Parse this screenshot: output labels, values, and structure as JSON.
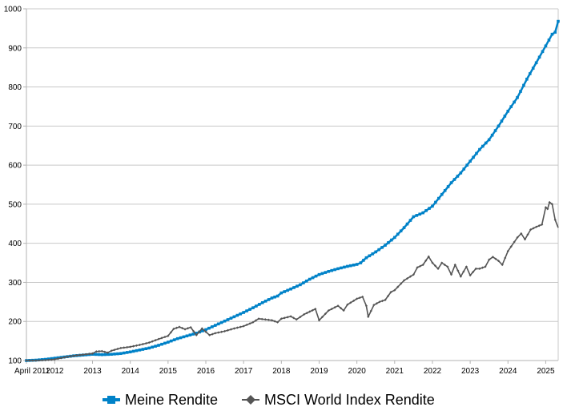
{
  "chart_data": {
    "type": "line",
    "title": "",
    "xlabel": "",
    "ylabel": "",
    "ylim": [
      100,
      1000
    ],
    "yticks": [
      100,
      200,
      300,
      400,
      500,
      600,
      700,
      800,
      900,
      1000
    ],
    "x_tick_labels": [
      {
        "label": "April 2011",
        "x": 2011.25
      },
      {
        "label": "2012",
        "x": 2012.0
      },
      {
        "label": "2013",
        "x": 2013.0
      },
      {
        "label": "2014",
        "x": 2014.0
      },
      {
        "label": "2015",
        "x": 2015.0
      },
      {
        "label": "2016",
        "x": 2016.0
      },
      {
        "label": "2017",
        "x": 2017.0
      },
      {
        "label": "2018",
        "x": 2018.0
      },
      {
        "label": "2019",
        "x": 2019.0
      },
      {
        "label": "2020",
        "x": 2020.0
      },
      {
        "label": "2021",
        "x": 2021.0
      },
      {
        "label": "2022",
        "x": 2022.0
      },
      {
        "label": "2023",
        "x": 2023.0
      },
      {
        "label": "2024",
        "x": 2024.0
      },
      {
        "label": "2025",
        "x": 2025.0
      }
    ],
    "xlim": [
      2011.25,
      2025.33
    ],
    "grid": true,
    "legend_position": "bottom",
    "series": [
      {
        "name": "Meine Rendite",
        "color": "#0082C8",
        "marker": "square",
        "points": [
          [
            2011.25,
            100
          ],
          [
            2011.5,
            101
          ],
          [
            2011.75,
            103
          ],
          [
            2012.0,
            106
          ],
          [
            2012.25,
            109
          ],
          [
            2012.5,
            112
          ],
          [
            2012.75,
            114
          ],
          [
            2013.0,
            116
          ],
          [
            2013.25,
            115
          ],
          [
            2013.5,
            116
          ],
          [
            2013.75,
            118
          ],
          [
            2014.0,
            122
          ],
          [
            2014.25,
            127
          ],
          [
            2014.5,
            132
          ],
          [
            2014.75,
            139
          ],
          [
            2015.0,
            147
          ],
          [
            2015.25,
            156
          ],
          [
            2015.5,
            163
          ],
          [
            2015.75,
            170
          ],
          [
            2016.0,
            179
          ],
          [
            2016.25,
            190
          ],
          [
            2016.5,
            201
          ],
          [
            2016.75,
            212
          ],
          [
            2017.0,
            223
          ],
          [
            2017.25,
            235
          ],
          [
            2017.5,
            248
          ],
          [
            2017.75,
            260
          ],
          [
            2017.9,
            265
          ],
          [
            2018.0,
            273
          ],
          [
            2018.25,
            283
          ],
          [
            2018.5,
            294
          ],
          [
            2018.75,
            308
          ],
          [
            2019.0,
            320
          ],
          [
            2019.25,
            328
          ],
          [
            2019.5,
            335
          ],
          [
            2019.75,
            341
          ],
          [
            2020.0,
            346
          ],
          [
            2020.1,
            350
          ],
          [
            2020.25,
            363
          ],
          [
            2020.5,
            378
          ],
          [
            2020.75,
            395
          ],
          [
            2021.0,
            415
          ],
          [
            2021.25,
            440
          ],
          [
            2021.5,
            468
          ],
          [
            2021.75,
            478
          ],
          [
            2022.0,
            495
          ],
          [
            2022.25,
            525
          ],
          [
            2022.5,
            555
          ],
          [
            2022.75,
            580
          ],
          [
            2023.0,
            610
          ],
          [
            2023.25,
            640
          ],
          [
            2023.5,
            665
          ],
          [
            2023.75,
            700
          ],
          [
            2024.0,
            738
          ],
          [
            2024.25,
            773
          ],
          [
            2024.5,
            820
          ],
          [
            2024.75,
            862
          ],
          [
            2025.0,
            905
          ],
          [
            2025.17,
            935
          ],
          [
            2025.25,
            940
          ],
          [
            2025.33,
            968
          ]
        ]
      },
      {
        "name": "MSCI World Index Rendite",
        "color": "#555555",
        "marker": "diamond",
        "points": [
          [
            2011.25,
            100
          ],
          [
            2011.5,
            100
          ],
          [
            2011.75,
            101
          ],
          [
            2012.0,
            103
          ],
          [
            2012.25,
            108
          ],
          [
            2012.5,
            112
          ],
          [
            2012.75,
            115
          ],
          [
            2013.0,
            118
          ],
          [
            2013.1,
            123
          ],
          [
            2013.25,
            124
          ],
          [
            2013.4,
            120
          ],
          [
            2013.5,
            125
          ],
          [
            2013.75,
            132
          ],
          [
            2014.0,
            135
          ],
          [
            2014.25,
            140
          ],
          [
            2014.5,
            146
          ],
          [
            2014.75,
            155
          ],
          [
            2015.0,
            163
          ],
          [
            2015.15,
            181
          ],
          [
            2015.3,
            186
          ],
          [
            2015.45,
            180
          ],
          [
            2015.6,
            185
          ],
          [
            2015.75,
            165
          ],
          [
            2015.9,
            182
          ],
          [
            2016.1,
            165
          ],
          [
            2016.25,
            170
          ],
          [
            2016.5,
            175
          ],
          [
            2016.75,
            182
          ],
          [
            2017.0,
            188
          ],
          [
            2017.25,
            198
          ],
          [
            2017.4,
            207
          ],
          [
            2017.75,
            203
          ],
          [
            2017.9,
            198
          ],
          [
            2018.0,
            207
          ],
          [
            2018.25,
            213
          ],
          [
            2018.4,
            205
          ],
          [
            2018.6,
            218
          ],
          [
            2018.75,
            225
          ],
          [
            2018.9,
            232
          ],
          [
            2019.0,
            203
          ],
          [
            2019.25,
            228
          ],
          [
            2019.5,
            240
          ],
          [
            2019.65,
            228
          ],
          [
            2019.75,
            243
          ],
          [
            2020.0,
            258
          ],
          [
            2020.15,
            263
          ],
          [
            2020.25,
            240
          ],
          [
            2020.3,
            212
          ],
          [
            2020.45,
            242
          ],
          [
            2020.6,
            250
          ],
          [
            2020.75,
            255
          ],
          [
            2020.9,
            275
          ],
          [
            2021.0,
            280
          ],
          [
            2021.25,
            305
          ],
          [
            2021.5,
            320
          ],
          [
            2021.6,
            338
          ],
          [
            2021.75,
            345
          ],
          [
            2021.9,
            366
          ],
          [
            2022.0,
            350
          ],
          [
            2022.15,
            335
          ],
          [
            2022.25,
            350
          ],
          [
            2022.4,
            340
          ],
          [
            2022.5,
            320
          ],
          [
            2022.6,
            345
          ],
          [
            2022.75,
            315
          ],
          [
            2022.9,
            340
          ],
          [
            2023.0,
            318
          ],
          [
            2023.15,
            335
          ],
          [
            2023.25,
            335
          ],
          [
            2023.4,
            340
          ],
          [
            2023.5,
            358
          ],
          [
            2023.6,
            365
          ],
          [
            2023.75,
            355
          ],
          [
            2023.85,
            345
          ],
          [
            2024.0,
            380
          ],
          [
            2024.25,
            415
          ],
          [
            2024.35,
            425
          ],
          [
            2024.45,
            410
          ],
          [
            2024.6,
            435
          ],
          [
            2024.75,
            442
          ],
          [
            2024.9,
            448
          ],
          [
            2025.0,
            492
          ],
          [
            2025.05,
            488
          ],
          [
            2025.1,
            505
          ],
          [
            2025.17,
            500
          ],
          [
            2025.25,
            460
          ],
          [
            2025.33,
            440
          ]
        ]
      }
    ]
  }
}
